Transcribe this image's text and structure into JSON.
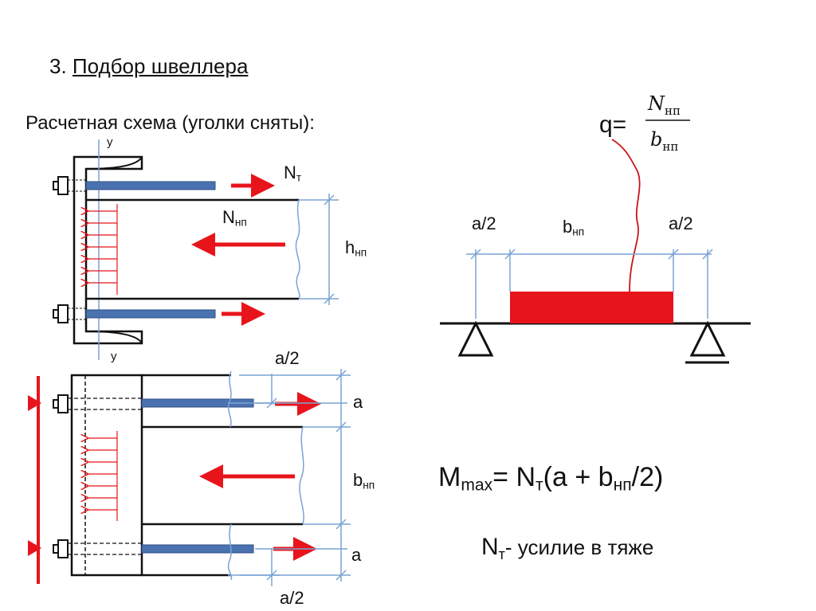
{
  "slide": {
    "heading_number": "3.",
    "heading_text": "Подбор швеллера",
    "subheading": "Расчетная схема (уголки сняты):"
  },
  "top_schema": {
    "axis_top": "y",
    "axis_bottom": "y",
    "label_nt": "N",
    "label_nt_sub": "т",
    "label_nnp": "N",
    "label_nnp_sub": "нп",
    "label_hnp": "h",
    "label_hnp_sub": "нп"
  },
  "bottom_schema": {
    "label_a2_top": "a/2",
    "label_a_top": "a",
    "label_bnp": "b",
    "label_bnp_sub": "нп",
    "label_a_bottom": "a",
    "label_a2_bottom": "a/2"
  },
  "beam": {
    "q_label": "q=",
    "q_numerator": "N",
    "q_numerator_sub": "нп",
    "q_denominator": "b",
    "q_denominator_sub": "нп",
    "left_span": "a/2",
    "middle_span": "b",
    "middle_span_sub": "нп",
    "right_span": "a/2"
  },
  "formulas": {
    "mmax_prefix": "M",
    "mmax_sub": "max",
    "mmax_eq": "= N",
    "mmax_nt_sub": "т",
    "mmax_rest": "(a + b",
    "mmax_bnp_sub": "нп",
    "mmax_end": "/2)",
    "note_symbol": "N",
    "note_sub": "т",
    "note_text": "- усилие в тяже"
  },
  "colors": {
    "red": "#e8141b",
    "blue": "#4a72b0",
    "dim_blue": "#7aa3d4",
    "black": "#111111"
  }
}
